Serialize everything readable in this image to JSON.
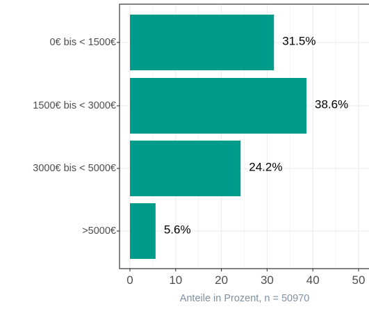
{
  "chart_data": {
    "type": "bar",
    "orientation": "horizontal",
    "categories": [
      "0€ bis < 1500€",
      "1500€ bis < 3000€",
      "3000€ bis < 5000€",
      ">5000€"
    ],
    "values": [
      31.5,
      38.6,
      24.2,
      5.6
    ],
    "data_labels": [
      "31.5%",
      "38.6%",
      "24.2%",
      "5.6%"
    ],
    "xlabel": "Anteile in Prozent, n = 50970",
    "ylabel": "",
    "xlim": [
      0,
      50
    ],
    "x_ticks": [
      "0",
      "10",
      "20",
      "30",
      "40",
      "50"
    ],
    "grid": true,
    "legend": "none",
    "colors": {
      "bar": "#009B8A",
      "grid": "#EBEBEB",
      "axis_title": "#7F90A0",
      "tick_label": "#4D4D4D",
      "panel_border": "#333333"
    }
  }
}
